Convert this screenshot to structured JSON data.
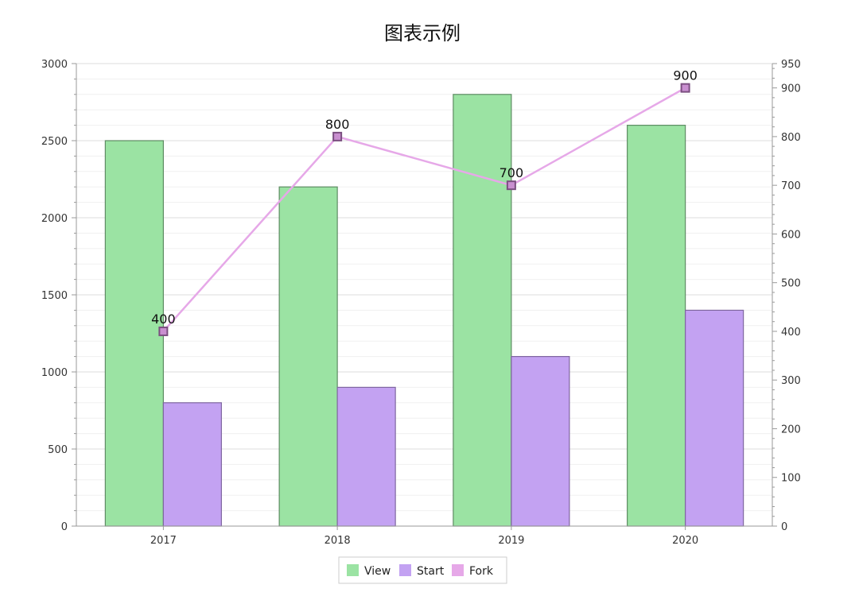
{
  "chart_data": {
    "type": "bar",
    "title": "图表示例",
    "categories": [
      "2017",
      "2018",
      "2019",
      "2020"
    ],
    "series": [
      {
        "name": "View",
        "type": "bar",
        "axis": "left",
        "color": "#9be3a3",
        "stroke": "#5e8c63",
        "values": [
          2500,
          2200,
          2800,
          2600
        ]
      },
      {
        "name": "Start",
        "type": "bar",
        "axis": "left",
        "color": "#c3a2f2",
        "stroke": "#7f66a0",
        "values": [
          800,
          900,
          1100,
          1400
        ]
      },
      {
        "name": "Fork",
        "type": "line",
        "axis": "right",
        "color": "#e6a8e8",
        "marker_fill": "#c98fd0",
        "marker_stroke": "#7b4f80",
        "values": [
          400,
          800,
          700,
          900
        ],
        "data_labels": [
          "400",
          "800",
          "700",
          "900"
        ]
      }
    ],
    "left_axis": {
      "min": 0,
      "max": 3000,
      "ticks": [
        "0",
        "500",
        "1000",
        "1500",
        "2000",
        "2500",
        "3000"
      ]
    },
    "right_axis": {
      "min": 0,
      "max": 950,
      "ticks": [
        "0",
        "100",
        "200",
        "300",
        "400",
        "500",
        "600",
        "700",
        "800",
        "900",
        "950"
      ]
    },
    "grid": true,
    "legend_position": "bottom-center",
    "colors": {
      "grid_major": "#dddddd",
      "grid_minor": "#f0f0f0",
      "axis": "#999999"
    }
  }
}
